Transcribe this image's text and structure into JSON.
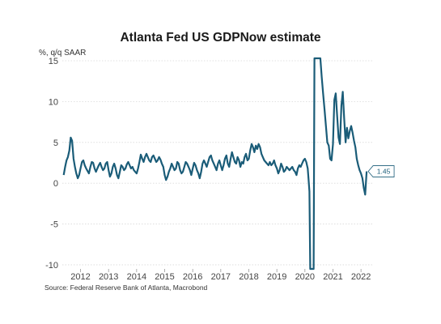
{
  "chart_data": {
    "type": "line",
    "title": "Atlanta Fed US GDPNow estimate",
    "ylabel": "%, q/q SAAR",
    "source": "Source: Federal Reserve Bank of Atlanta, Macrobond",
    "ylim": [
      -10.5,
      15.3
    ],
    "xlim": [
      2011.35,
      2022.4
    ],
    "y_ticks": [
      "15",
      "10",
      "5",
      "0",
      "-5",
      "-10"
    ],
    "y_tick_values": [
      15,
      10,
      5,
      0,
      -5,
      -10
    ],
    "x_ticks": [
      "2012",
      "2013",
      "2014",
      "2015",
      "2016",
      "2017",
      "2018",
      "2019",
      "2020",
      "2021",
      "2022"
    ],
    "x_tick_values": [
      2012,
      2013,
      2014,
      2015,
      2016,
      2017,
      2018,
      2019,
      2020,
      2021,
      2022
    ],
    "grid": true,
    "last_value_label": "1.45",
    "line_color": "#1a5c78",
    "series": [
      {
        "x": [
          2011.4,
          2011.45,
          2011.5,
          2011.55,
          2011.6,
          2011.65,
          2011.7,
          2011.75,
          2011.8,
          2011.85,
          2011.9,
          2011.95,
          2012.0,
          2012.05,
          2012.1,
          2012.15,
          2012.2,
          2012.25,
          2012.3,
          2012.35,
          2012.4,
          2012.45,
          2012.5,
          2012.55,
          2012.6,
          2012.65,
          2012.7,
          2012.75,
          2012.8,
          2012.85,
          2012.9,
          2012.95,
          2013.0,
          2013.05,
          2013.1,
          2013.15,
          2013.2,
          2013.25,
          2013.3,
          2013.35,
          2013.4,
          2013.45,
          2013.5,
          2013.55,
          2013.6,
          2013.65,
          2013.7,
          2013.75,
          2013.8,
          2013.85,
          2013.9,
          2013.95,
          2014.0,
          2014.05,
          2014.1,
          2014.15,
          2014.2,
          2014.25,
          2014.3,
          2014.35,
          2014.4,
          2014.45,
          2014.5,
          2014.55,
          2014.6,
          2014.65,
          2014.7,
          2014.75,
          2014.8,
          2014.85,
          2014.9,
          2014.95,
          2015.0,
          2015.05,
          2015.1,
          2015.15,
          2015.2,
          2015.25,
          2015.3,
          2015.35,
          2015.4,
          2015.45,
          2015.5,
          2015.55,
          2015.6,
          2015.65,
          2015.7,
          2015.75,
          2015.8,
          2015.85,
          2015.9,
          2015.95,
          2016.0,
          2016.05,
          2016.1,
          2016.15,
          2016.2,
          2016.25,
          2016.3,
          2016.35,
          2016.4,
          2016.45,
          2016.5,
          2016.55,
          2016.6,
          2016.65,
          2016.7,
          2016.75,
          2016.8,
          2016.85,
          2016.9,
          2016.95,
          2017.0,
          2017.05,
          2017.1,
          2017.15,
          2017.2,
          2017.25,
          2017.3,
          2017.35,
          2017.4,
          2017.45,
          2017.5,
          2017.55,
          2017.6,
          2017.65,
          2017.7,
          2017.75,
          2017.8,
          2017.85,
          2017.9,
          2017.95,
          2018.0,
          2018.05,
          2018.1,
          2018.15,
          2018.2,
          2018.25,
          2018.3,
          2018.35,
          2018.4,
          2018.45,
          2018.5,
          2018.55,
          2018.6,
          2018.65,
          2018.7,
          2018.75,
          2018.8,
          2018.85,
          2018.9,
          2018.95,
          2019.0,
          2019.05,
          2019.1,
          2019.15,
          2019.2,
          2019.25,
          2019.3,
          2019.35,
          2019.4,
          2019.45,
          2019.5,
          2019.55,
          2019.6,
          2019.65,
          2019.7,
          2019.75,
          2019.8,
          2019.85,
          2019.9,
          2019.95,
          2020.0,
          2020.05,
          2020.1,
          2020.13,
          2020.16,
          2020.19,
          2020.22,
          2020.25,
          2020.28,
          2020.31,
          2020.34,
          2020.37,
          2020.4,
          2020.43,
          2020.46,
          2020.5,
          2020.55,
          2020.6,
          2020.65,
          2020.7,
          2020.75,
          2020.8,
          2020.85,
          2020.9,
          2020.95,
          2021.0,
          2021.05,
          2021.1,
          2021.15,
          2021.2,
          2021.25,
          2021.3,
          2021.35,
          2021.4,
          2021.45,
          2021.5,
          2021.55,
          2021.6,
          2021.65,
          2021.7,
          2021.75,
          2021.8,
          2021.85,
          2021.9,
          2021.95,
          2022.0,
          2022.05,
          2022.1,
          2022.15,
          2022.2
        ],
        "y": [
          1.0,
          2.0,
          2.8,
          3.2,
          4.0,
          5.6,
          5.2,
          3.0,
          2.0,
          1.2,
          0.6,
          1.0,
          1.8,
          2.6,
          2.8,
          2.2,
          1.8,
          1.5,
          1.2,
          2.0,
          2.6,
          2.5,
          1.8,
          1.4,
          1.8,
          2.2,
          2.5,
          2.0,
          1.6,
          1.8,
          2.4,
          2.6,
          1.6,
          0.8,
          1.2,
          2.0,
          2.4,
          1.8,
          1.0,
          0.6,
          1.4,
          2.2,
          2.0,
          1.6,
          1.8,
          2.3,
          2.6,
          2.2,
          1.8,
          2.0,
          1.6,
          1.4,
          1.2,
          1.8,
          2.6,
          3.5,
          3.0,
          2.6,
          3.2,
          3.6,
          3.2,
          2.8,
          2.6,
          3.2,
          3.4,
          3.0,
          2.6,
          2.8,
          3.2,
          2.9,
          2.4,
          2.0,
          1.0,
          0.4,
          0.8,
          1.4,
          1.8,
          2.4,
          2.0,
          1.6,
          1.8,
          2.6,
          2.4,
          1.6,
          1.2,
          1.4,
          2.0,
          2.6,
          2.4,
          2.0,
          1.6,
          1.0,
          1.8,
          2.5,
          2.2,
          1.6,
          1.2,
          0.6,
          1.4,
          2.4,
          2.8,
          2.4,
          2.0,
          2.6,
          3.2,
          3.4,
          2.8,
          2.4,
          2.0,
          1.6,
          2.4,
          2.8,
          2.2,
          1.6,
          2.2,
          3.0,
          3.4,
          2.4,
          2.0,
          3.0,
          3.8,
          3.2,
          2.6,
          2.4,
          3.2,
          2.8,
          2.0,
          2.6,
          2.4,
          3.2,
          3.6,
          2.8,
          3.0,
          4.0,
          4.8,
          4.4,
          3.8,
          4.6,
          4.2,
          4.8,
          4.4,
          3.6,
          3.2,
          2.8,
          2.6,
          2.4,
          2.2,
          2.6,
          2.2,
          2.4,
          2.8,
          2.2,
          1.8,
          1.2,
          1.6,
          2.4,
          2.0,
          1.4,
          1.6,
          2.0,
          1.8,
          1.6,
          1.8,
          2.0,
          1.6,
          1.4,
          1.0,
          1.8,
          2.2,
          2.0,
          2.4,
          2.8,
          3.0,
          2.6,
          1.8,
          0.5,
          -1.0,
          -10.5,
          -10.5,
          -10.5,
          -10.5,
          -10.5,
          15.3,
          15.3,
          15.3,
          15.3,
          15.3,
          15.3,
          15.3,
          13.0,
          11.0,
          9.0,
          7.0,
          5.0,
          4.6,
          3.0,
          2.8,
          4.8,
          10.2,
          11.0,
          8.2,
          5.6,
          4.8,
          9.5,
          11.2,
          8.0,
          5.0,
          6.8,
          5.5,
          6.4,
          7.0,
          6.2,
          5.2,
          4.4,
          3.0,
          2.2,
          1.6,
          1.2,
          0.6,
          -0.6,
          -1.4,
          1.45
        ]
      }
    ]
  }
}
